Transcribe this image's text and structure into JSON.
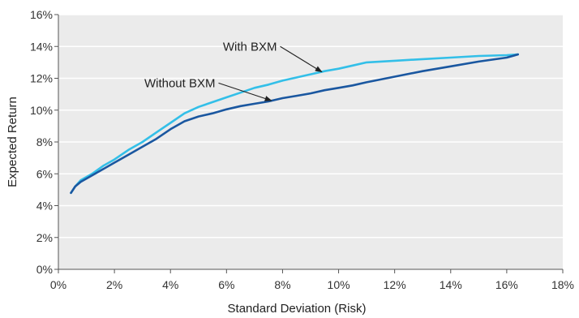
{
  "chart_data": {
    "type": "line",
    "title": "",
    "xlabel": "Standard Deviation (Risk)",
    "ylabel": "Expected Return",
    "xlim": [
      0,
      18
    ],
    "ylim": [
      0,
      16
    ],
    "x_ticks": [
      "0%",
      "2%",
      "4%",
      "6%",
      "8%",
      "10%",
      "12%",
      "14%",
      "16%",
      "18%"
    ],
    "y_ticks": [
      "0%",
      "2%",
      "4%",
      "6%",
      "8%",
      "10%",
      "12%",
      "14%",
      "16%"
    ],
    "grid": "horizontal",
    "background_color": "#ebebeb",
    "series": [
      {
        "name": "With BXM",
        "color": "#33bfe8",
        "points": [
          [
            0.45,
            4.8
          ],
          [
            0.6,
            5.2
          ],
          [
            0.8,
            5.6
          ],
          [
            1.2,
            6.0
          ],
          [
            1.6,
            6.5
          ],
          [
            2.0,
            6.9
          ],
          [
            2.5,
            7.5
          ],
          [
            3.0,
            8.0
          ],
          [
            3.5,
            8.6
          ],
          [
            4.0,
            9.2
          ],
          [
            4.5,
            9.8
          ],
          [
            5.0,
            10.2
          ],
          [
            5.5,
            10.5
          ],
          [
            6.0,
            10.8
          ],
          [
            6.5,
            11.1
          ],
          [
            7.0,
            11.4
          ],
          [
            7.5,
            11.6
          ],
          [
            8.0,
            11.85
          ],
          [
            8.5,
            12.05
          ],
          [
            9.0,
            12.25
          ],
          [
            9.5,
            12.45
          ],
          [
            10.0,
            12.6
          ],
          [
            10.5,
            12.8
          ],
          [
            11.0,
            13.0
          ],
          [
            12.0,
            13.1
          ],
          [
            13.0,
            13.2
          ],
          [
            14.0,
            13.3
          ],
          [
            15.0,
            13.4
          ],
          [
            16.0,
            13.45
          ],
          [
            16.4,
            13.5
          ]
        ]
      },
      {
        "name": "Without BXM",
        "color": "#1a57a0",
        "points": [
          [
            0.45,
            4.8
          ],
          [
            0.6,
            5.2
          ],
          [
            0.8,
            5.5
          ],
          [
            1.2,
            5.9
          ],
          [
            1.6,
            6.3
          ],
          [
            2.0,
            6.7
          ],
          [
            2.5,
            7.2
          ],
          [
            3.0,
            7.7
          ],
          [
            3.5,
            8.2
          ],
          [
            4.0,
            8.8
          ],
          [
            4.5,
            9.3
          ],
          [
            5.0,
            9.6
          ],
          [
            5.5,
            9.8
          ],
          [
            6.0,
            10.05
          ],
          [
            6.5,
            10.25
          ],
          [
            7.0,
            10.4
          ],
          [
            7.5,
            10.55
          ],
          [
            8.0,
            10.75
          ],
          [
            8.5,
            10.9
          ],
          [
            9.0,
            11.05
          ],
          [
            9.5,
            11.25
          ],
          [
            10.0,
            11.4
          ],
          [
            10.5,
            11.55
          ],
          [
            11.0,
            11.75
          ],
          [
            12.0,
            12.1
          ],
          [
            13.0,
            12.45
          ],
          [
            14.0,
            12.75
          ],
          [
            15.0,
            13.05
          ],
          [
            16.0,
            13.3
          ],
          [
            16.4,
            13.5
          ]
        ]
      }
    ],
    "annotations": [
      {
        "text": "With BXM",
        "series": "With BXM",
        "label_at": [
          7.8,
          14.0
        ],
        "arrow_to": [
          9.4,
          12.4
        ]
      },
      {
        "text": "Without BXM",
        "series": "Without BXM",
        "label_at": [
          5.6,
          11.7
        ],
        "arrow_to": [
          7.6,
          10.6
        ]
      }
    ]
  }
}
